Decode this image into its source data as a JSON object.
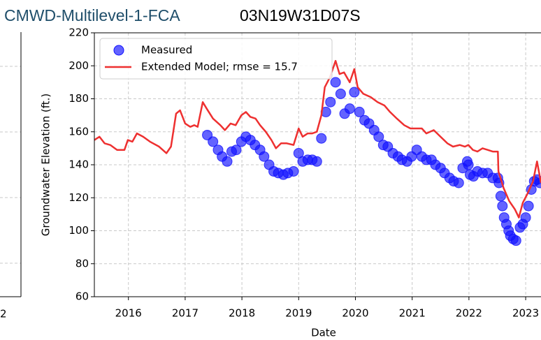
{
  "header": {
    "site": "CMWD-Multilevel-1-FCA",
    "well": "03N19W31D07S"
  },
  "left_panel": {
    "xtick_fragment": "2"
  },
  "chart_data": {
    "type": "line",
    "xlabel": "Date",
    "ylabel": "Groundwater Elevation (ft.)",
    "xlim": [
      2015.4,
      2023.27
    ],
    "ylim": [
      60,
      220
    ],
    "xticks": [
      2016,
      2017,
      2018,
      2019,
      2020,
      2021,
      2022,
      2023
    ],
    "yticks": [
      60,
      80,
      100,
      120,
      140,
      160,
      180,
      200,
      220
    ],
    "grid": true,
    "legend": "upper left",
    "series": [
      {
        "name": "Measured",
        "style": "markers",
        "color": "#1010ff",
        "x": [
          2017.39,
          2017.49,
          2017.58,
          2017.65,
          2017.74,
          2017.82,
          2017.9,
          2017.99,
          2018.07,
          2018.15,
          2018.23,
          2018.32,
          2018.39,
          2018.48,
          2018.56,
          2018.64,
          2018.73,
          2018.81,
          2018.91,
          2019.0,
          2019.07,
          2019.16,
          2019.24,
          2019.32,
          2019.4,
          2019.48,
          2019.56,
          2019.65,
          2019.74,
          2019.81,
          2019.9,
          2019.98,
          2020.07,
          2020.16,
          2020.24,
          2020.33,
          2020.41,
          2020.49,
          2020.57,
          2020.66,
          2020.75,
          2020.82,
          2020.91,
          2020.99,
          2021.08,
          2021.17,
          2021.25,
          2021.34,
          2021.41,
          2021.5,
          2021.57,
          2021.66,
          2021.73,
          2021.82,
          2021.89,
          2021.97,
          2021.99,
          2022.02,
          2022.08,
          2022.15,
          2022.24,
          2022.33,
          2022.42,
          2022.51,
          2022.53,
          2022.56,
          2022.59,
          2022.62,
          2022.66,
          2022.7,
          2022.73,
          2022.78,
          2022.83,
          2022.9,
          2022.95,
          2023.0,
          2023.05,
          2023.1,
          2023.15,
          2023.2,
          2023.25
        ],
        "values": [
          158,
          154,
          149,
          145,
          142,
          148,
          149,
          154,
          157,
          155,
          152,
          149,
          145,
          140,
          136,
          135,
          134,
          135,
          136,
          147,
          142,
          143,
          143,
          142,
          156,
          172,
          178,
          190,
          183,
          171,
          174,
          184,
          172,
          167,
          165,
          161,
          157,
          152,
          151,
          147,
          145,
          143,
          142,
          145,
          149,
          145,
          143,
          143,
          140,
          138,
          135,
          132,
          130,
          129,
          138,
          142,
          140,
          134,
          133,
          136,
          135,
          135,
          132,
          132,
          129,
          121,
          115,
          108,
          104,
          100,
          97,
          95,
          94,
          102,
          104,
          108,
          115,
          125,
          130,
          131,
          129
        ]
      },
      {
        "name": "Extended Model; rmse = 15.7",
        "style": "line",
        "color": "#ee3030",
        "x": [
          2015.4,
          2015.49,
          2015.58,
          2015.68,
          2015.8,
          2015.93,
          2015.99,
          2016.07,
          2016.15,
          2016.26,
          2016.38,
          2016.54,
          2016.67,
          2016.75,
          2016.84,
          2016.91,
          2017.0,
          2017.09,
          2017.16,
          2017.22,
          2017.31,
          2017.38,
          2017.49,
          2017.62,
          2017.7,
          2017.8,
          2017.89,
          2017.99,
          2018.07,
          2018.15,
          2018.24,
          2018.32,
          2018.42,
          2018.52,
          2018.6,
          2018.69,
          2018.79,
          2018.91,
          2019.0,
          2019.07,
          2019.16,
          2019.24,
          2019.32,
          2019.4,
          2019.46,
          2019.55,
          2019.65,
          2019.72,
          2019.8,
          2019.9,
          2019.98,
          2020.04,
          2020.14,
          2020.27,
          2020.39,
          2020.51,
          2020.61,
          2020.73,
          2020.86,
          2020.97,
          2021.07,
          2021.17,
          2021.25,
          2021.38,
          2021.5,
          2021.62,
          2021.72,
          2021.84,
          2021.93,
          2021.99,
          2022.07,
          2022.15,
          2022.24,
          2022.33,
          2022.42,
          2022.51,
          2022.52,
          2022.61,
          2022.71,
          2022.81,
          2022.88,
          2022.95,
          2023.04,
          2023.13,
          2023.2,
          2023.27
        ],
        "values": [
          155,
          157,
          153,
          152,
          149,
          149,
          155,
          154,
          159,
          157,
          154,
          151,
          147,
          151,
          171,
          173,
          165,
          163,
          164,
          163,
          178,
          174,
          168,
          164,
          161,
          165,
          164,
          170,
          172,
          169,
          168,
          164,
          160,
          155,
          150,
          153,
          153,
          152,
          162,
          157,
          159,
          159,
          160,
          170,
          187,
          193,
          203,
          195,
          196,
          190,
          198,
          187,
          183,
          181,
          178,
          176,
          172,
          168,
          164,
          162,
          162,
          162,
          159,
          161,
          157,
          153,
          151,
          152,
          151,
          152,
          149,
          148,
          150,
          149,
          148,
          148,
          136,
          126,
          118,
          113,
          108,
          117,
          123,
          130,
          142,
          129
        ]
      }
    ]
  }
}
